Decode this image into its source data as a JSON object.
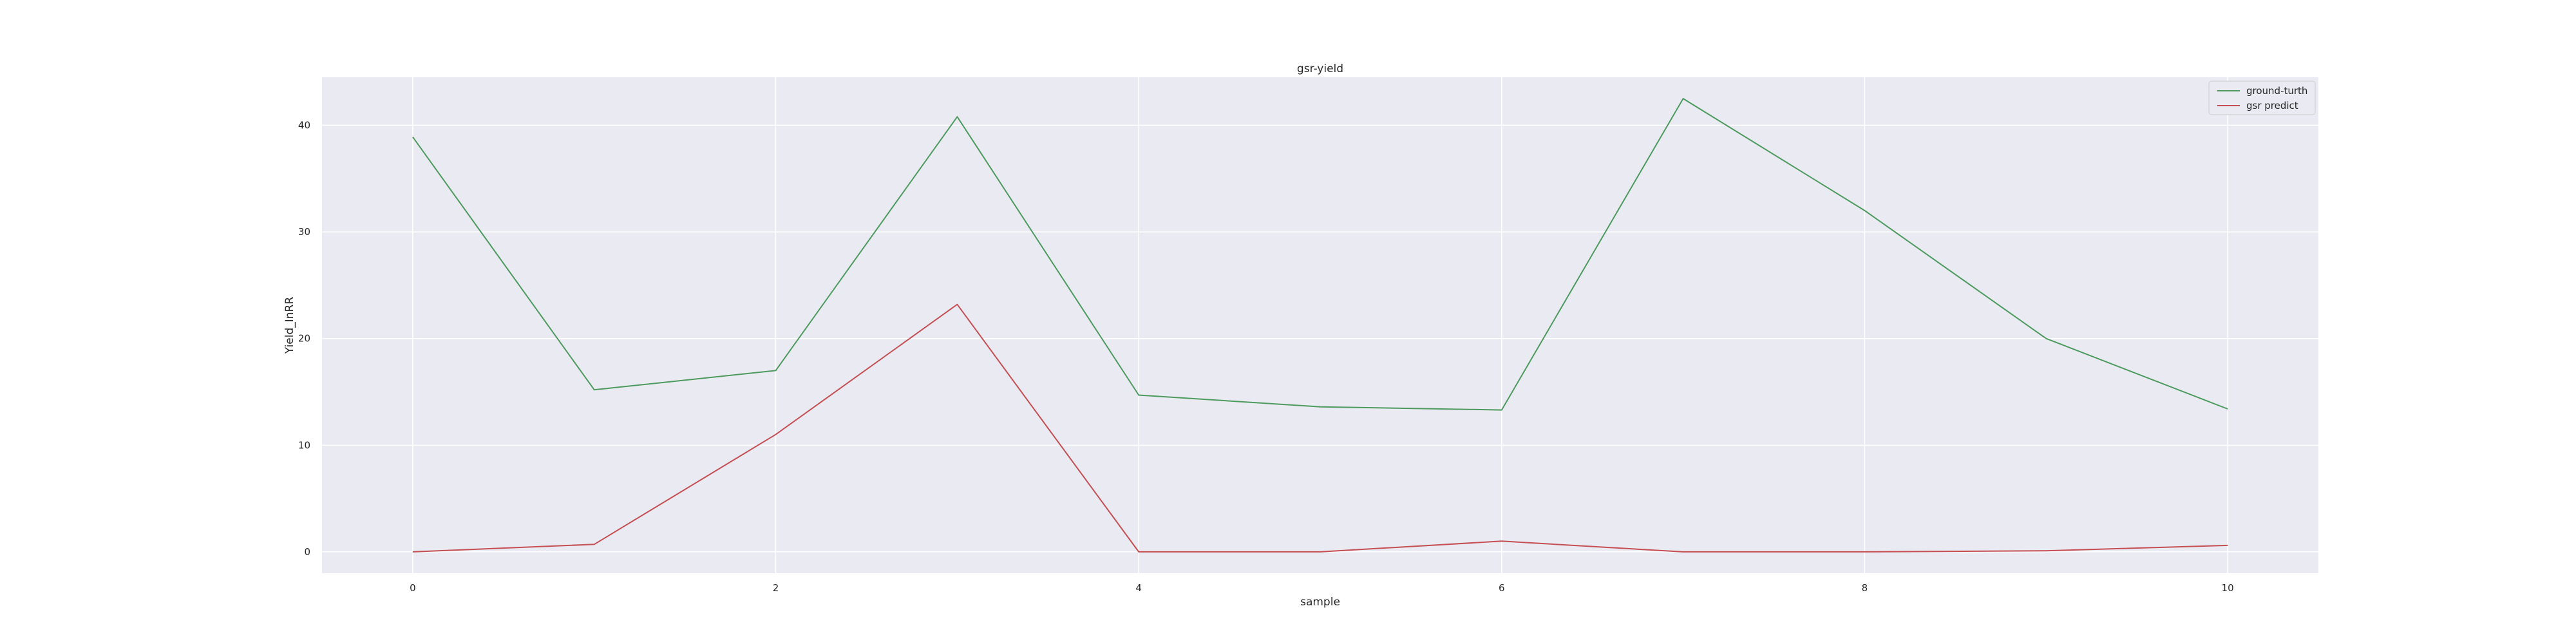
{
  "chart_data": {
    "type": "line",
    "title": "gsr-yield",
    "xlabel": "sample",
    "ylabel": "Yield_InRR",
    "x": [
      0,
      1,
      2,
      3,
      4,
      5,
      6,
      7,
      8,
      9,
      10
    ],
    "xticks": [
      "0",
      "2",
      "4",
      "6",
      "8",
      "10"
    ],
    "yticks": [
      "0",
      "10",
      "20",
      "30",
      "40"
    ],
    "xlim": [
      -0.5,
      10.5
    ],
    "ylim": [
      -2,
      44.5
    ],
    "grid": true,
    "legend_position": "top-right",
    "background_color": "#eaeaf2",
    "series": [
      {
        "name": "ground-turth",
        "color": "#4c9a5e",
        "values": [
          38.9,
          15.2,
          17.0,
          40.8,
          14.7,
          13.6,
          13.3,
          42.5,
          32.0,
          20.0,
          13.4
        ]
      },
      {
        "name": "gsr predict",
        "color": "#c44e52",
        "values": [
          0.0,
          0.7,
          11.0,
          23.2,
          0.0,
          0.0,
          1.0,
          0.0,
          0.0,
          0.1,
          0.6
        ]
      }
    ]
  }
}
